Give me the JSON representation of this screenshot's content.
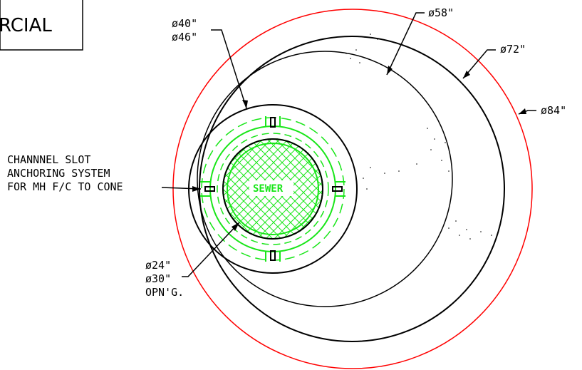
{
  "title_fragment": "RCIAL",
  "labels": {
    "d40": "ø40\"",
    "d46": "ø46\"",
    "d58": "ø58\"",
    "d72": "ø72\"",
    "d84": "ø84\"",
    "d24": "ø24\"",
    "d30": "ø30\"",
    "opng": "OPN'G.",
    "channel_line1": "CHANNNEL SLOT",
    "channel_line2": "ANCHORING SYSTEM",
    "channel_line3": "FOR MH F/C TO CONE",
    "sewer": "SEWER"
  },
  "colors": {
    "outline": "#000000",
    "red_circle": "#ff0000",
    "cover_green": "#19e619"
  }
}
